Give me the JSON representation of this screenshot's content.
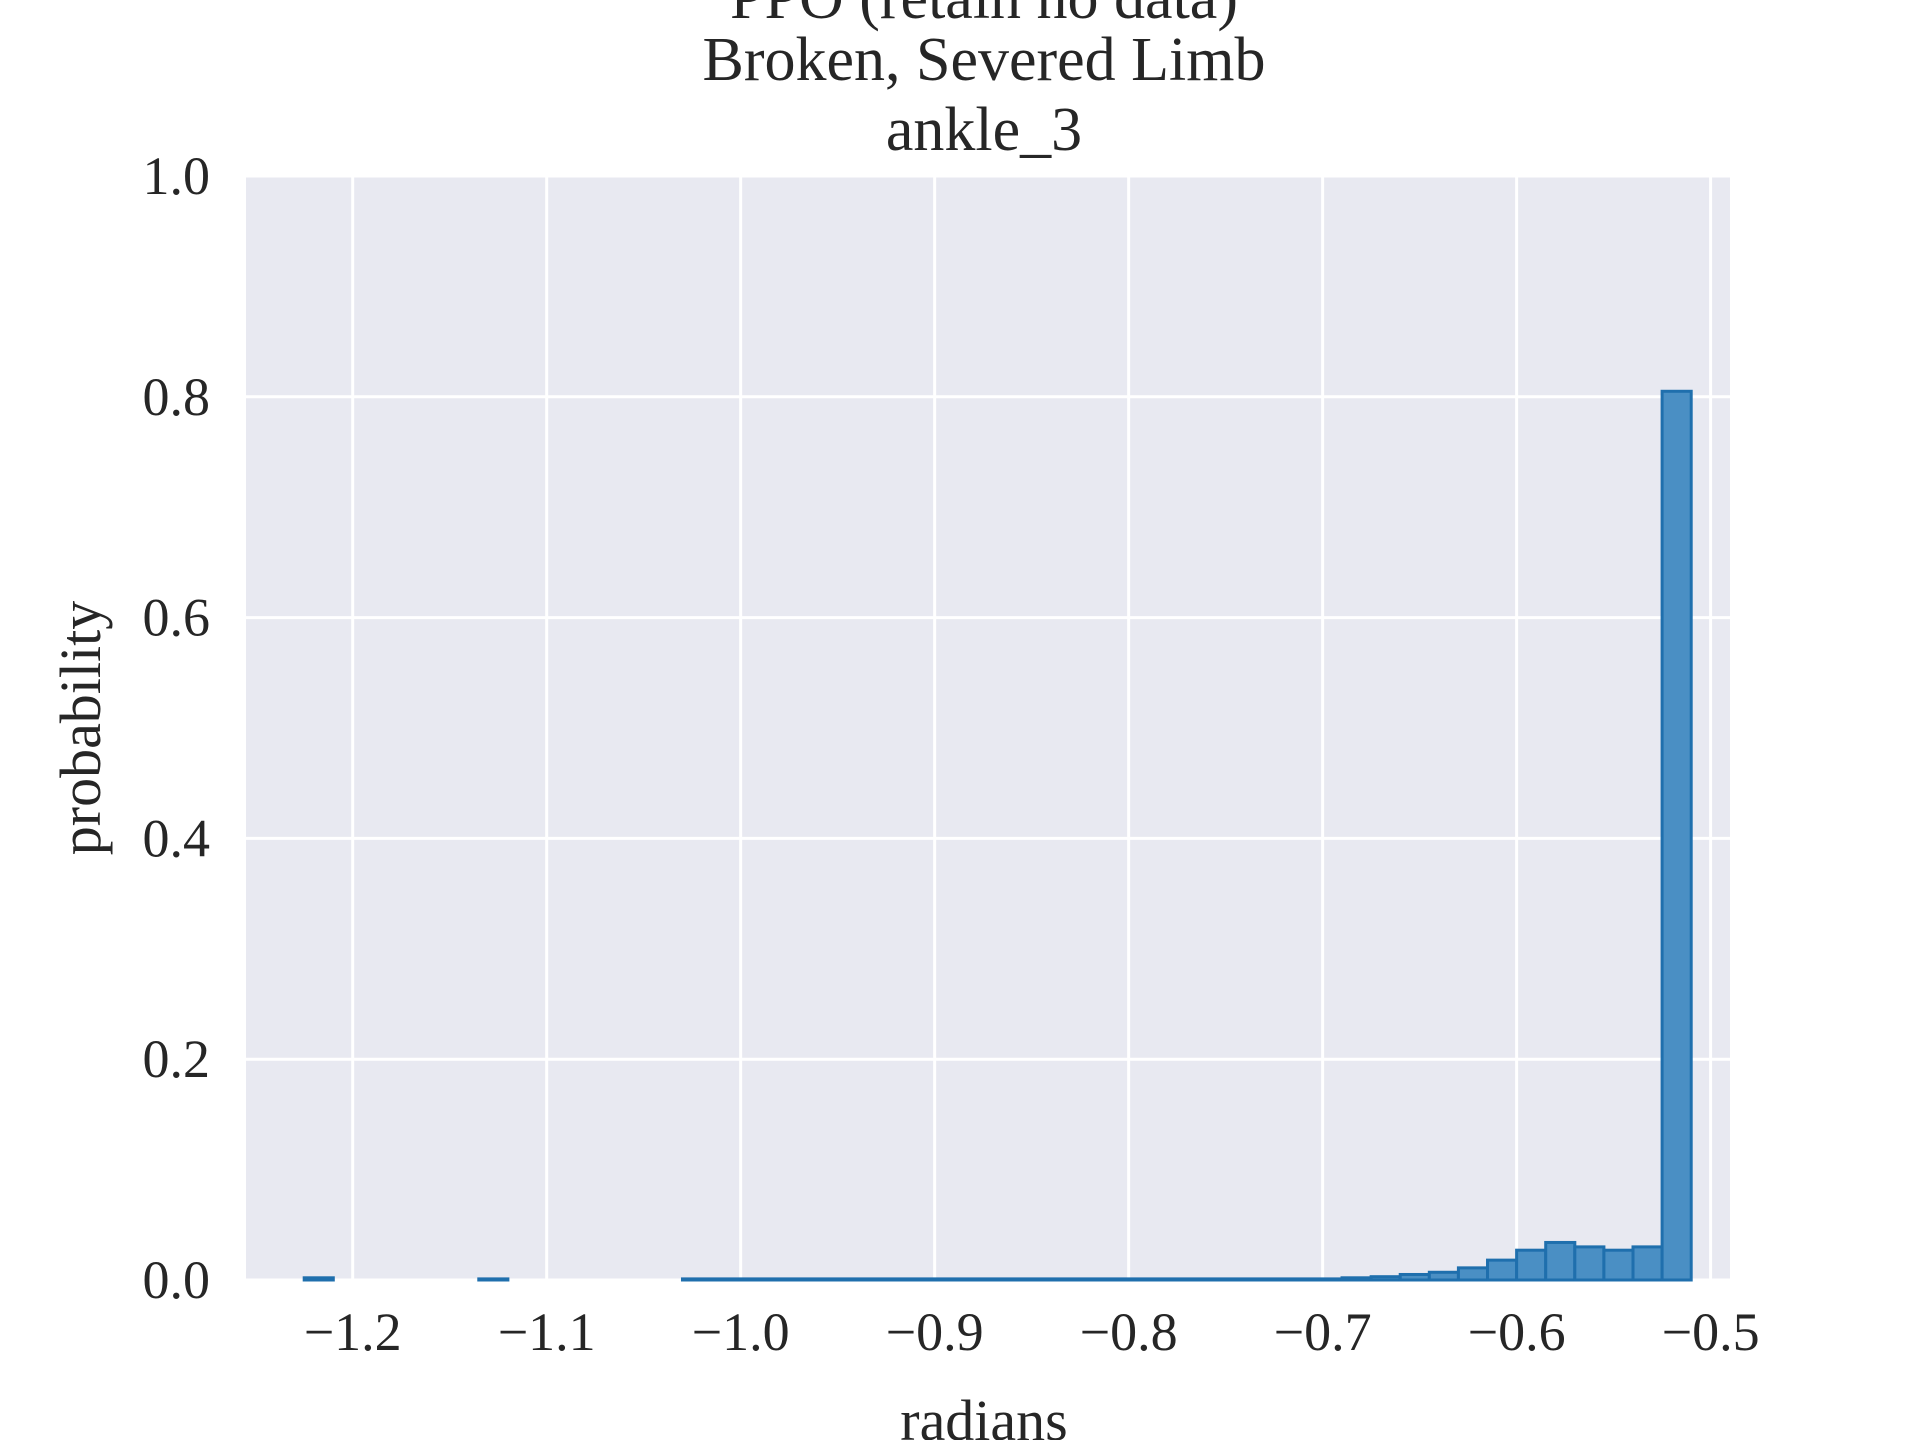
{
  "chart_data": {
    "type": "histogram",
    "title_lines": [
      "PPO (retain no data)",
      "Broken, Severed Limb",
      "ankle_3"
    ],
    "xlabel": "radians",
    "ylabel": "probability",
    "xlim": [
      -1.255,
      -0.49
    ],
    "ylim": [
      0.0,
      1.0
    ],
    "x_ticks": [
      -1.2,
      -1.1,
      -1.0,
      -0.9,
      -0.8,
      -0.7,
      -0.6,
      -0.5
    ],
    "x_tick_labels": [
      "−1.2",
      "−1.1",
      "−1.0",
      "−0.9",
      "−0.8",
      "−0.7",
      "−0.6",
      "−0.5"
    ],
    "y_ticks": [
      0.0,
      0.2,
      0.4,
      0.6,
      0.8,
      1.0
    ],
    "y_tick_labels": [
      "0.0",
      "0.2",
      "0.4",
      "0.6",
      "0.8",
      "1.0"
    ],
    "grid": true,
    "colors": {
      "bar_fill": "#4a8fc4",
      "bar_edge": "#1f6fad",
      "plot_bg": "#e8e9f1",
      "grid": "#ffffff"
    },
    "bins": [
      {
        "x0": -1.225,
        "x1": -1.21,
        "y": 0.002
      },
      {
        "x0": -1.135,
        "x1": -1.12,
        "y": 0.001
      },
      {
        "x0": -1.03,
        "x1": -0.69,
        "y": 0.001
      },
      {
        "x0": -0.69,
        "x1": -0.675,
        "y": 0.002
      },
      {
        "x0": -0.675,
        "x1": -0.66,
        "y": 0.003
      },
      {
        "x0": -0.66,
        "x1": -0.645,
        "y": 0.005
      },
      {
        "x0": -0.645,
        "x1": -0.63,
        "y": 0.007
      },
      {
        "x0": -0.63,
        "x1": -0.615,
        "y": 0.011
      },
      {
        "x0": -0.615,
        "x1": -0.6,
        "y": 0.018
      },
      {
        "x0": -0.6,
        "x1": -0.585,
        "y": 0.027
      },
      {
        "x0": -0.585,
        "x1": -0.57,
        "y": 0.034
      },
      {
        "x0": -0.57,
        "x1": -0.555,
        "y": 0.03
      },
      {
        "x0": -0.555,
        "x1": -0.54,
        "y": 0.027
      },
      {
        "x0": -0.54,
        "x1": -0.525,
        "y": 0.03
      },
      {
        "x0": -0.525,
        "x1": -0.51,
        "y": 0.805
      }
    ]
  }
}
